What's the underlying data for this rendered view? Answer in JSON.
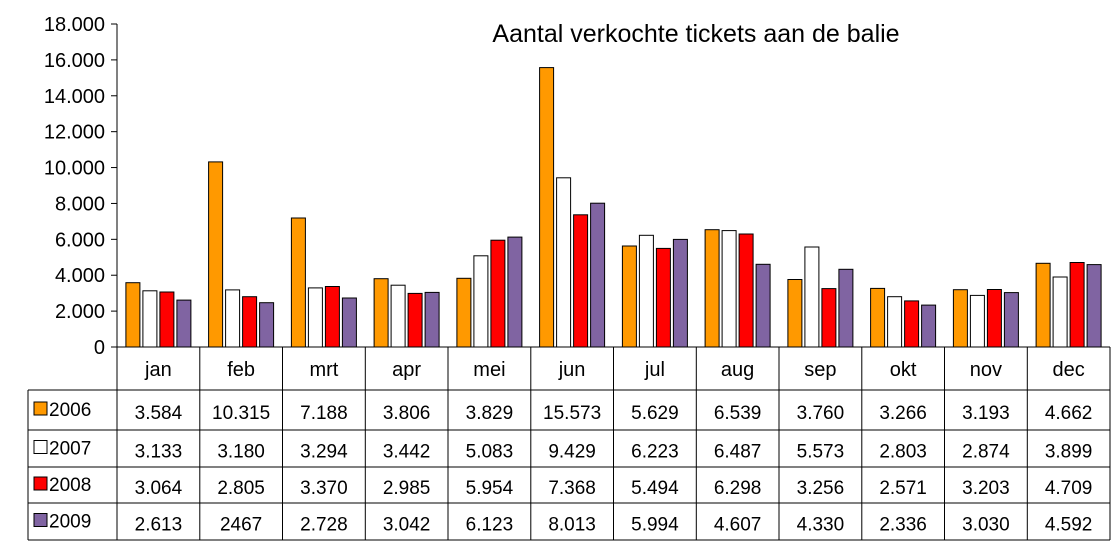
{
  "chart_data": {
    "type": "bar",
    "title": "Aantal verkochte tickets aan de balie",
    "xlabel": "",
    "ylabel": "",
    "ylim": [
      0,
      18000
    ],
    "yticks": [
      "0",
      "2.000",
      "4.000",
      "6.000",
      "8.000",
      "10.000",
      "12.000",
      "14.000",
      "16.000",
      "18.000"
    ],
    "categories": [
      "jan",
      "feb",
      "mrt",
      "apr",
      "mei",
      "jun",
      "jul",
      "aug",
      "sep",
      "okt",
      "nov",
      "dec"
    ],
    "grid": false,
    "legend": "data-table-left",
    "series": [
      {
        "name": "2006",
        "color": "#ff9900",
        "values": [
          3584,
          10315,
          7188,
          3806,
          3829,
          15573,
          5629,
          6539,
          3760,
          3266,
          3193,
          4662
        ],
        "labels": [
          "3.584",
          "10.315",
          "7.188",
          "3.806",
          "3.829",
          "15.573",
          "5.629",
          "6.539",
          "3.760",
          "3.266",
          "3.193",
          "4.662"
        ]
      },
      {
        "name": "2007",
        "color": "#ffffff",
        "values": [
          3133,
          3180,
          3294,
          3442,
          5083,
          9429,
          6223,
          6487,
          5573,
          2803,
          2874,
          3899
        ],
        "labels": [
          "3.133",
          "3.180",
          "3.294",
          "3.442",
          "5.083",
          "9.429",
          "6.223",
          "6.487",
          "5.573",
          "2.803",
          "2.874",
          "3.899"
        ]
      },
      {
        "name": "2008",
        "color": "#ff0000",
        "values": [
          3064,
          2805,
          3370,
          2985,
          5954,
          7368,
          5494,
          6298,
          3256,
          2571,
          3203,
          4709
        ],
        "labels": [
          "3.064",
          "2.805",
          "3.370",
          "2.985",
          "5.954",
          "7.368",
          "5.494",
          "6.298",
          "3.256",
          "2.571",
          "3.203",
          "4.709"
        ]
      },
      {
        "name": "2009",
        "color": "#8064a2",
        "values": [
          2613,
          2467,
          2728,
          3042,
          6123,
          8013,
          5994,
          4607,
          4330,
          2336,
          3030,
          4592
        ],
        "labels": [
          "2.613",
          "2467",
          "2.728",
          "3.042",
          "6.123",
          "8.013",
          "5.994",
          "4.607",
          "4.330",
          "2.336",
          "3.030",
          "4.592"
        ]
      }
    ]
  }
}
